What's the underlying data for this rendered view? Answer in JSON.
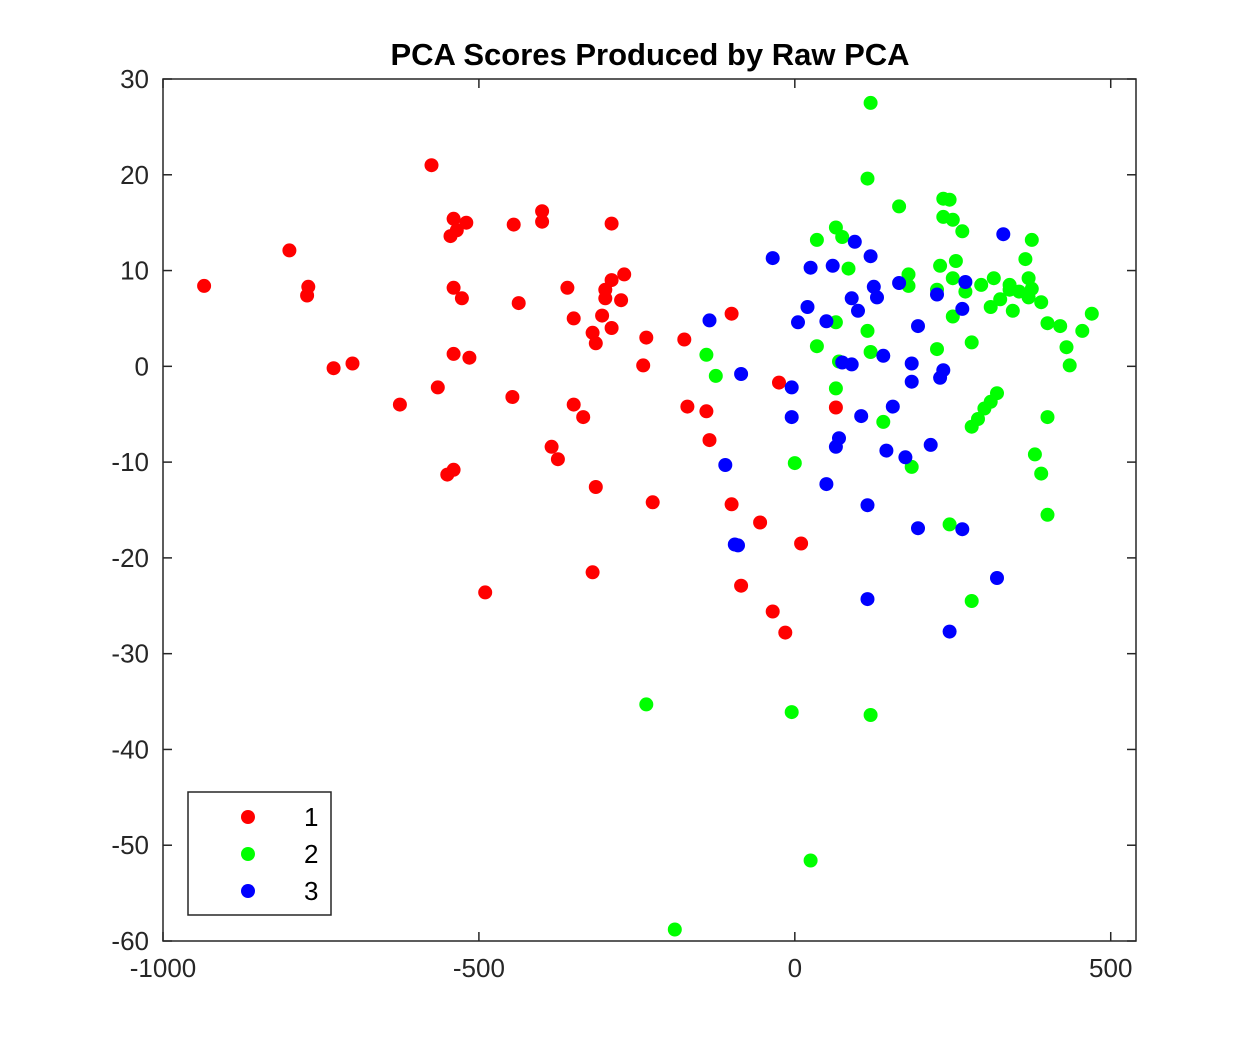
{
  "chart_data": {
    "type": "scatter",
    "title": "PCA Scores Produced by Raw PCA",
    "xlabel": "",
    "ylabel": "",
    "xlim": [
      -1000,
      540
    ],
    "ylim": [
      -60,
      30
    ],
    "x_ticks": [
      -1000,
      -500,
      0,
      500
    ],
    "y_ticks": [
      30,
      20,
      10,
      0,
      -10,
      -20,
      -30,
      -40,
      -50,
      -60
    ],
    "x_tick_labels": [
      "-1000",
      "-500",
      "0",
      "500"
    ],
    "y_tick_labels": [
      "30",
      "20",
      "10",
      "0",
      "-10",
      "-20",
      "-30",
      "-40",
      "-50",
      "-60"
    ],
    "grid": false,
    "legend_position": "bottom-left",
    "series": [
      {
        "name": "1",
        "color": "#ff0000",
        "points": [
          [
            -935,
            8.4
          ],
          [
            -800,
            12.1
          ],
          [
            -770,
            8.3
          ],
          [
            -772,
            7.4
          ],
          [
            -730,
            -0.2
          ],
          [
            -700,
            0.3
          ],
          [
            -625,
            -4.0
          ],
          [
            -575,
            21.0
          ],
          [
            -565,
            -2.2
          ],
          [
            -550,
            -11.3
          ],
          [
            -540,
            -10.8
          ],
          [
            -540,
            15.4
          ],
          [
            -535,
            14.2
          ],
          [
            -545,
            13.6
          ],
          [
            -520,
            15.0
          ],
          [
            -540,
            8.2
          ],
          [
            -527,
            7.1
          ],
          [
            -540,
            1.3
          ],
          [
            -515,
            0.9
          ],
          [
            -445,
            14.8
          ],
          [
            -447,
            -3.2
          ],
          [
            -437,
            6.6
          ],
          [
            -400,
            16.2
          ],
          [
            -400,
            15.1
          ],
          [
            -385,
            -8.4
          ],
          [
            -375,
            -9.7
          ],
          [
            -360,
            8.2
          ],
          [
            -350,
            5.0
          ],
          [
            -350,
            -4.0
          ],
          [
            -335,
            -5.3
          ],
          [
            -320,
            3.5
          ],
          [
            -315,
            2.4
          ],
          [
            -315,
            -12.6
          ],
          [
            -320,
            -21.5
          ],
          [
            -305,
            5.3
          ],
          [
            -300,
            8.0
          ],
          [
            -300,
            7.1
          ],
          [
            -290,
            14.9
          ],
          [
            -290,
            9.0
          ],
          [
            -290,
            4.0
          ],
          [
            -275,
            6.9
          ],
          [
            -270,
            9.6
          ],
          [
            -235,
            3.0
          ],
          [
            -240,
            0.1
          ],
          [
            -225,
            -14.2
          ],
          [
            -490,
            -23.6
          ],
          [
            -175,
            2.8
          ],
          [
            -170,
            -4.2
          ],
          [
            -140,
            -4.7
          ],
          [
            -135,
            -7.7
          ],
          [
            -100,
            5.5
          ],
          [
            -100,
            -14.4
          ],
          [
            -85,
            -22.9
          ],
          [
            -55,
            -16.3
          ],
          [
            -35,
            -25.6
          ],
          [
            -25,
            -1.7
          ],
          [
            -15,
            -27.8
          ],
          [
            10,
            -18.5
          ],
          [
            65,
            -4.3
          ]
        ]
      },
      {
        "name": "2",
        "color": "#00ff00",
        "points": [
          [
            120,
            27.5
          ],
          [
            115,
            19.6
          ],
          [
            165,
            16.7
          ],
          [
            235,
            17.5
          ],
          [
            245,
            17.4
          ],
          [
            235,
            15.6
          ],
          [
            250,
            15.3
          ],
          [
            65,
            14.5
          ],
          [
            35,
            13.2
          ],
          [
            75,
            13.5
          ],
          [
            265,
            14.1
          ],
          [
            375,
            13.2
          ],
          [
            230,
            10.5
          ],
          [
            255,
            11.0
          ],
          [
            365,
            11.2
          ],
          [
            85,
            10.2
          ],
          [
            180,
            9.6
          ],
          [
            250,
            9.2
          ],
          [
            315,
            9.2
          ],
          [
            340,
            8.5
          ],
          [
            180,
            8.4
          ],
          [
            225,
            8.0
          ],
          [
            270,
            7.8
          ],
          [
            295,
            8.5
          ],
          [
            340,
            8.0
          ],
          [
            355,
            7.8
          ],
          [
            370,
            9.2
          ],
          [
            375,
            8.1
          ],
          [
            370,
            7.2
          ],
          [
            325,
            7.0
          ],
          [
            310,
            6.2
          ],
          [
            345,
            5.8
          ],
          [
            390,
            6.7
          ],
          [
            250,
            5.2
          ],
          [
            65,
            4.6
          ],
          [
            115,
            3.7
          ],
          [
            400,
            4.5
          ],
          [
            420,
            4.2
          ],
          [
            455,
            3.7
          ],
          [
            470,
            5.5
          ],
          [
            430,
            2.0
          ],
          [
            435,
            0.1
          ],
          [
            35,
            2.1
          ],
          [
            120,
            1.5
          ],
          [
            225,
            1.8
          ],
          [
            280,
            2.5
          ],
          [
            70,
            0.5
          ],
          [
            -140,
            1.2
          ],
          [
            -125,
            -1.0
          ],
          [
            65,
            -2.3
          ],
          [
            320,
            -2.8
          ],
          [
            310,
            -3.7
          ],
          [
            300,
            -4.4
          ],
          [
            290,
            -5.5
          ],
          [
            280,
            -6.3
          ],
          [
            400,
            -5.3
          ],
          [
            140,
            -5.8
          ],
          [
            380,
            -9.2
          ],
          [
            390,
            -11.2
          ],
          [
            0,
            -10.1
          ],
          [
            185,
            -10.5
          ],
          [
            400,
            -15.5
          ],
          [
            245,
            -16.5
          ],
          [
            280,
            -24.5
          ],
          [
            -235,
            -35.3
          ],
          [
            -5,
            -36.1
          ],
          [
            120,
            -36.4
          ],
          [
            25,
            -51.6
          ],
          [
            -190,
            -58.8
          ]
        ]
      },
      {
        "name": "3",
        "color": "#0000ff",
        "points": [
          [
            330,
            13.8
          ],
          [
            -35,
            11.3
          ],
          [
            95,
            13.0
          ],
          [
            120,
            11.5
          ],
          [
            25,
            10.3
          ],
          [
            60,
            10.5
          ],
          [
            165,
            8.7
          ],
          [
            125,
            8.3
          ],
          [
            270,
            8.8
          ],
          [
            90,
            7.1
          ],
          [
            130,
            7.2
          ],
          [
            225,
            7.5
          ],
          [
            20,
            6.2
          ],
          [
            100,
            5.8
          ],
          [
            265,
            6.0
          ],
          [
            -135,
            4.8
          ],
          [
            5,
            4.6
          ],
          [
            50,
            4.7
          ],
          [
            195,
            4.2
          ],
          [
            90,
            0.2
          ],
          [
            75,
            0.4
          ],
          [
            140,
            1.1
          ],
          [
            185,
            0.3
          ],
          [
            235,
            -0.4
          ],
          [
            230,
            -1.2
          ],
          [
            -85,
            -0.8
          ],
          [
            -5,
            -2.2
          ],
          [
            185,
            -1.6
          ],
          [
            155,
            -4.2
          ],
          [
            -5,
            -5.3
          ],
          [
            105,
            -5.2
          ],
          [
            70,
            -7.5
          ],
          [
            65,
            -8.4
          ],
          [
            145,
            -8.8
          ],
          [
            175,
            -9.5
          ],
          [
            215,
            -8.2
          ],
          [
            -110,
            -10.3
          ],
          [
            50,
            -12.3
          ],
          [
            115,
            -14.5
          ],
          [
            -90,
            -18.7
          ],
          [
            -95,
            -18.6
          ],
          [
            195,
            -16.9
          ],
          [
            265,
            -17.0
          ],
          [
            320,
            -22.1
          ],
          [
            115,
            -24.3
          ],
          [
            245,
            -27.7
          ]
        ]
      }
    ]
  }
}
